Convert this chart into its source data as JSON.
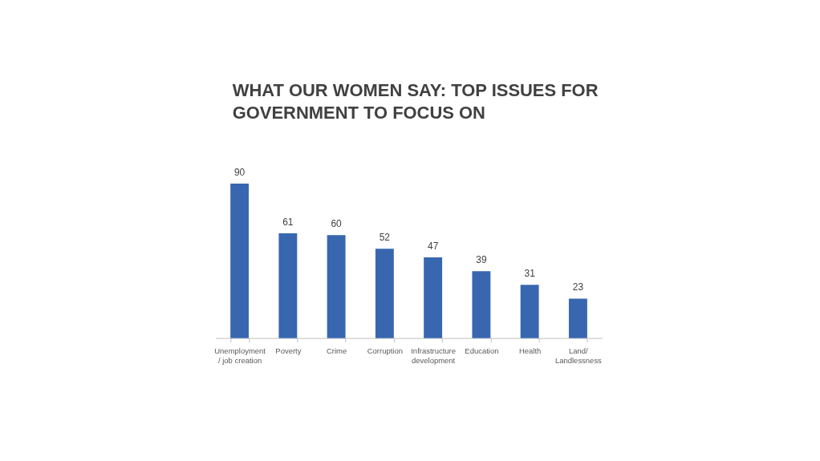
{
  "chart_data": {
    "type": "bar",
    "title": "WHAT OUR WOMEN SAY: TOP ISSUES FOR GOVERNMENT TO FOCUS ON",
    "categories": [
      "Unemployment / job creation",
      "Poverty",
      "Crime",
      "Corruption",
      "Infrastructure development",
      "Education",
      "Health",
      "Land/ Landlessness"
    ],
    "values": [
      90,
      61,
      60,
      52,
      47,
      39,
      31,
      23
    ],
    "color": "#3867b0",
    "data_labels": true,
    "tick_labels": "x"
  }
}
